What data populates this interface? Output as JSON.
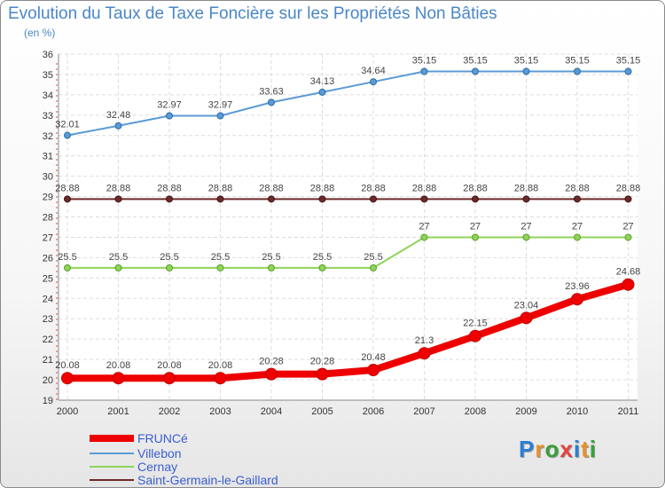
{
  "title": "Evolution du Taux de Taxe Foncière sur les Propriétés Non Bâties",
  "unit": "(en %)",
  "logo": {
    "text": "Proxiti",
    "letters": [
      "P",
      "r",
      "o",
      "x",
      "i",
      "t",
      "i"
    ],
    "colors": [
      "#2a7fd4",
      "#e8902a",
      "#3aa03a",
      "#e84040",
      "#2a7fd4",
      "#e8902a",
      "#3aa03a"
    ]
  },
  "chart_data": {
    "type": "line",
    "x": [
      "2000",
      "2001",
      "2002",
      "2003",
      "2004",
      "2005",
      "2006",
      "2007",
      "2008",
      "2009",
      "2010",
      "2011"
    ],
    "ylim": [
      19,
      36
    ],
    "yticks": [
      19,
      20,
      21,
      22,
      23,
      24,
      25,
      26,
      27,
      28,
      29,
      30,
      31,
      32,
      33,
      34,
      35,
      36
    ],
    "series": [
      {
        "name": "FRUNCé",
        "color": "#ee0000",
        "values": [
          20.08,
          20.08,
          20.08,
          20.08,
          20.28,
          20.28,
          20.48,
          21.3,
          22.15,
          23.04,
          23.96,
          24.68
        ],
        "labels": [
          "20.08",
          "20.08",
          "20.08",
          "20.08",
          "20.28",
          "20.28",
          "20.48",
          "21.3",
          "22.15",
          "23.04",
          "23.96",
          "24.68"
        ]
      },
      {
        "name": "Villebon",
        "color": "#5b9bd5",
        "values": [
          32.01,
          32.48,
          32.97,
          32.97,
          33.63,
          34.13,
          34.64,
          35.15,
          35.15,
          35.15,
          35.15,
          35.15
        ],
        "labels": [
          "32.01",
          "32.48",
          "32.97",
          "32.97",
          "33.63",
          "34.13",
          "34.64",
          "35.15",
          "35.15",
          "35.15",
          "35.15",
          "35.15"
        ]
      },
      {
        "name": "Cernay",
        "color": "#8fd45a",
        "values": [
          25.5,
          25.5,
          25.5,
          25.5,
          25.5,
          25.5,
          25.5,
          27,
          27,
          27,
          27,
          27
        ],
        "labels": [
          "25.5",
          "25.5",
          "25.5",
          "25.5",
          "25.5",
          "25.5",
          "25.5",
          "27",
          "27",
          "27",
          "27",
          "27"
        ]
      },
      {
        "name": "Saint-Germain-le-Gaillard",
        "color": "#6e2a2a",
        "values": [
          28.88,
          28.88,
          28.88,
          28.88,
          28.88,
          28.88,
          28.88,
          28.88,
          28.88,
          28.88,
          28.88,
          28.88
        ],
        "labels": [
          "28.88",
          "28.88",
          "28.88",
          "28.88",
          "28.88",
          "28.88",
          "28.88",
          "28.88",
          "28.88",
          "28.88",
          "28.88",
          "28.88"
        ]
      }
    ]
  }
}
